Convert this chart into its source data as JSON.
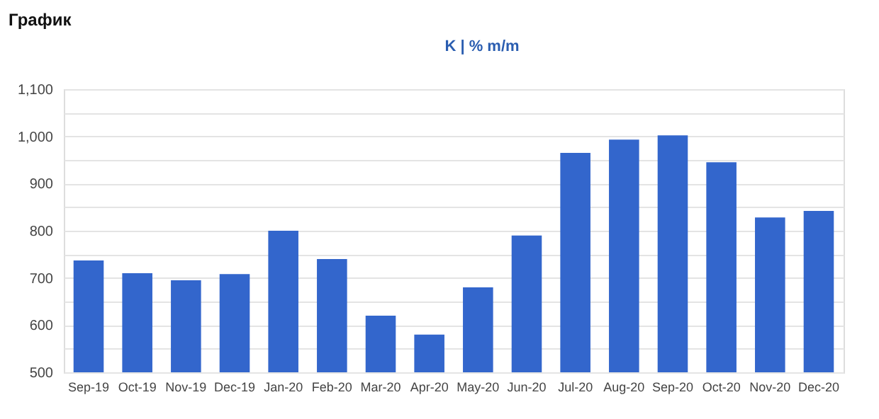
{
  "chart_data": {
    "type": "bar",
    "title": "График",
    "annotations": [
      "K | % m/m"
    ],
    "categories": [
      "Sep-19",
      "Oct-19",
      "Nov-19",
      "Dec-19",
      "Jan-20",
      "Feb-20",
      "Mar-20",
      "Apr-20",
      "May-20",
      "Jun-20",
      "Jul-20",
      "Aug-20",
      "Sep-20",
      "Oct-20",
      "Nov-20",
      "Dec-20"
    ],
    "values": [
      737,
      710,
      695,
      708,
      800,
      740,
      620,
      580,
      680,
      790,
      965,
      993,
      1002,
      945,
      828,
      842
    ],
    "color": "#3366cc",
    "ylim": [
      500,
      1100
    ],
    "yticks": [
      {
        "value": 500,
        "label": "500"
      },
      {
        "value": 550,
        "label": null
      },
      {
        "value": 600,
        "label": "600"
      },
      {
        "value": 650,
        "label": null
      },
      {
        "value": 700,
        "label": "700"
      },
      {
        "value": 750,
        "label": null
      },
      {
        "value": 800,
        "label": "800"
      },
      {
        "value": 850,
        "label": null
      },
      {
        "value": 900,
        "label": "900"
      },
      {
        "value": 950,
        "label": null
      },
      {
        "value": 1000,
        "label": "1,000"
      },
      {
        "value": 1050,
        "label": null
      },
      {
        "value": 1100,
        "label": "1,100"
      }
    ],
    "grid": "y"
  }
}
